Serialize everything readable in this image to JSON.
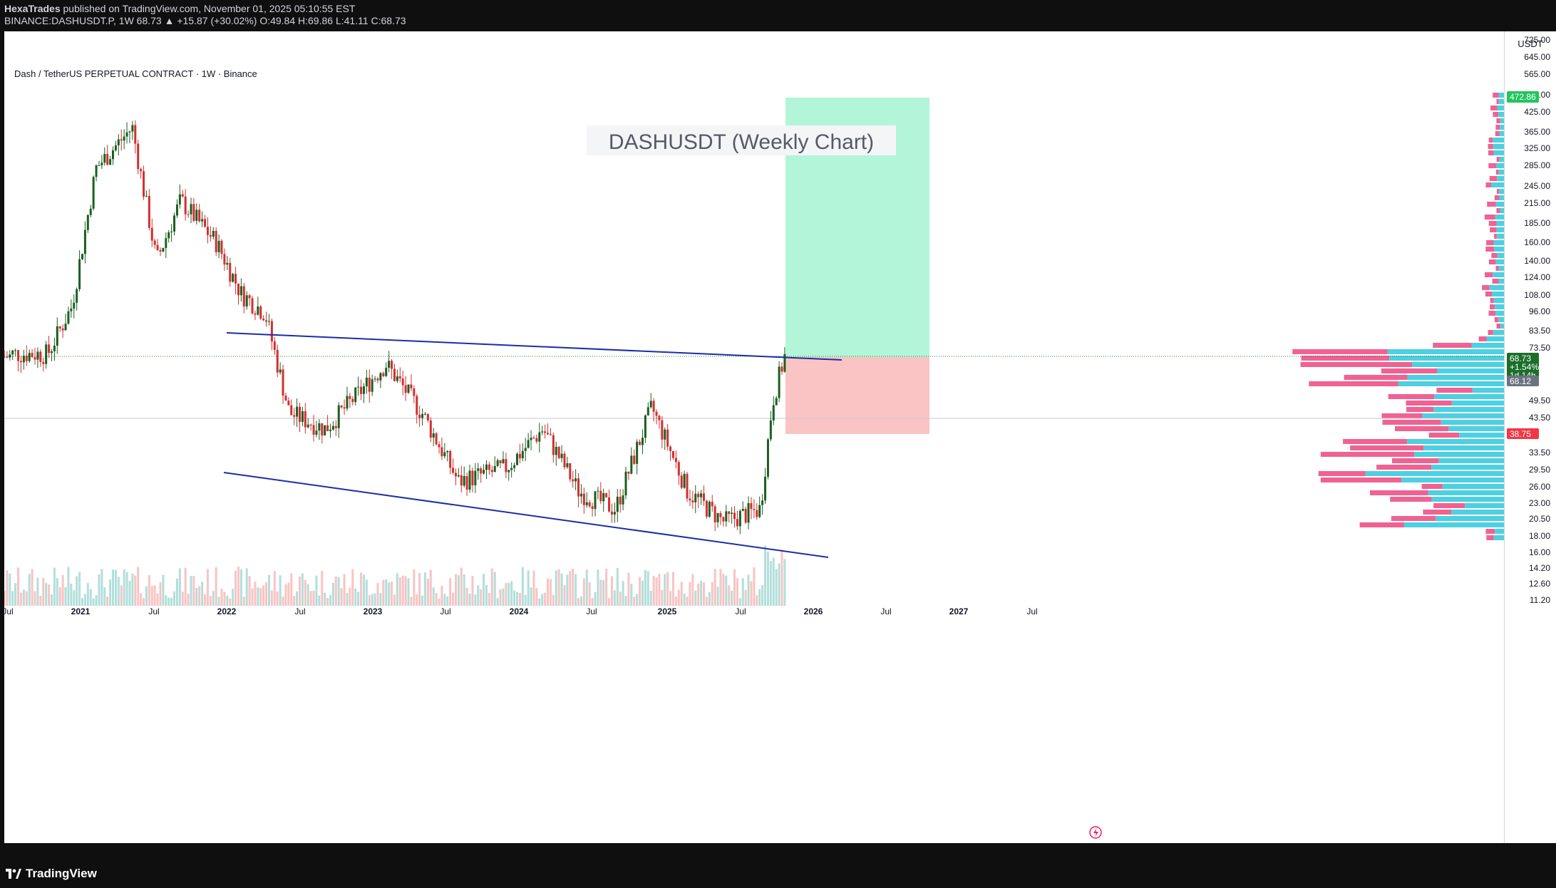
{
  "header": {
    "publisher": "HexaTrades",
    "published_text": " published on TradingView.com, November 01, 2025 05:10:55 EST",
    "symbol_line_prefix": "BINANCE:DASHUSDT.P, 1W  68.73 ▲ +15.87 (+30.02%) O:49.84 H:69.86 L:41.11 C:68.73"
  },
  "chart_title": "Dash / TetherUS PERPETUAL CONTRACT · 1W · Binance",
  "annotation": "DASHUSDT (Weekly Chart)",
  "currency": "USDT",
  "footer": {
    "brand": "TradingView"
  },
  "colors": {
    "up": "#26a69a",
    "down": "#ef5350",
    "candle_up": "#1b5e20",
    "candle_down": "#d32f2f",
    "trendline": "#1a2ea8",
    "target_zone": "#b2f5d8",
    "stop_zone": "#fbc4c4",
    "vp_up": "#4dd0e1",
    "vp_down": "#f06292"
  },
  "chart_data": {
    "type": "candlestick",
    "xlabels": [
      "Jul",
      "2021",
      "Jul",
      "2022",
      "Jul",
      "2023",
      "Jul",
      "2024",
      "Jul",
      "2025",
      "Jul",
      "2026",
      "Jul",
      "2027",
      "Jul"
    ],
    "y_ticks": [
      "725.00",
      "645.00",
      "565.00",
      "485.00",
      "425.00",
      "365.00",
      "325.00",
      "285.00",
      "245.00",
      "215.00",
      "185.00",
      "160.00",
      "140.00",
      "124.00",
      "108.00",
      "96.00",
      "83.50",
      "73.50",
      "68.12",
      "49.50",
      "43.50",
      "33.50",
      "29.50",
      "26.00",
      "23.00",
      "20.50",
      "18.00",
      "16.00",
      "14.20",
      "12.60",
      "11.20"
    ],
    "y_scale": "log",
    "price_badges": {
      "target": "472.86",
      "last_price": "68.73",
      "change": "+1.54%",
      "countdown": "1d 14h",
      "prev_close": "68.12",
      "stop": "38.75"
    },
    "trendlines": [
      {
        "name": "upper",
        "from": {
          "x": "2022-03",
          "y": 82
        },
        "to": {
          "x": "2026-01",
          "y": 67
        }
      },
      {
        "name": "lower",
        "from": {
          "x": "2022-03",
          "y": 28
        },
        "to": {
          "x": "2026-01",
          "y": 15.5
        }
      }
    ],
    "position": {
      "entry": 68.73,
      "target": 472.86,
      "stop": 38.75
    },
    "approx_weekly_close": [
      {
        "x": "2020-07",
        "y": 70
      },
      {
        "x": "2020-10",
        "y": 70
      },
      {
        "x": "2020-12",
        "y": 100
      },
      {
        "x": "2021-02",
        "y": 280
      },
      {
        "x": "2021-05",
        "y": 380
      },
      {
        "x": "2021-07",
        "y": 140
      },
      {
        "x": "2021-09",
        "y": 220
      },
      {
        "x": "2021-12",
        "y": 160
      },
      {
        "x": "2022-02",
        "y": 110
      },
      {
        "x": "2022-04",
        "y": 95
      },
      {
        "x": "2022-06",
        "y": 45
      },
      {
        "x": "2022-09",
        "y": 40
      },
      {
        "x": "2023-02",
        "y": 65
      },
      {
        "x": "2023-05",
        "y": 45
      },
      {
        "x": "2023-08",
        "y": 27
      },
      {
        "x": "2023-12",
        "y": 30
      },
      {
        "x": "2024-03",
        "y": 40
      },
      {
        "x": "2024-06",
        "y": 25
      },
      {
        "x": "2024-09",
        "y": 22
      },
      {
        "x": "2024-12",
        "y": 47
      },
      {
        "x": "2025-03",
        "y": 25
      },
      {
        "x": "2025-06",
        "y": 20
      },
      {
        "x": "2025-09",
        "y": 22
      },
      {
        "x": "2025-10",
        "y": 49
      },
      {
        "x": "2025-11",
        "y": 68.73
      }
    ]
  }
}
